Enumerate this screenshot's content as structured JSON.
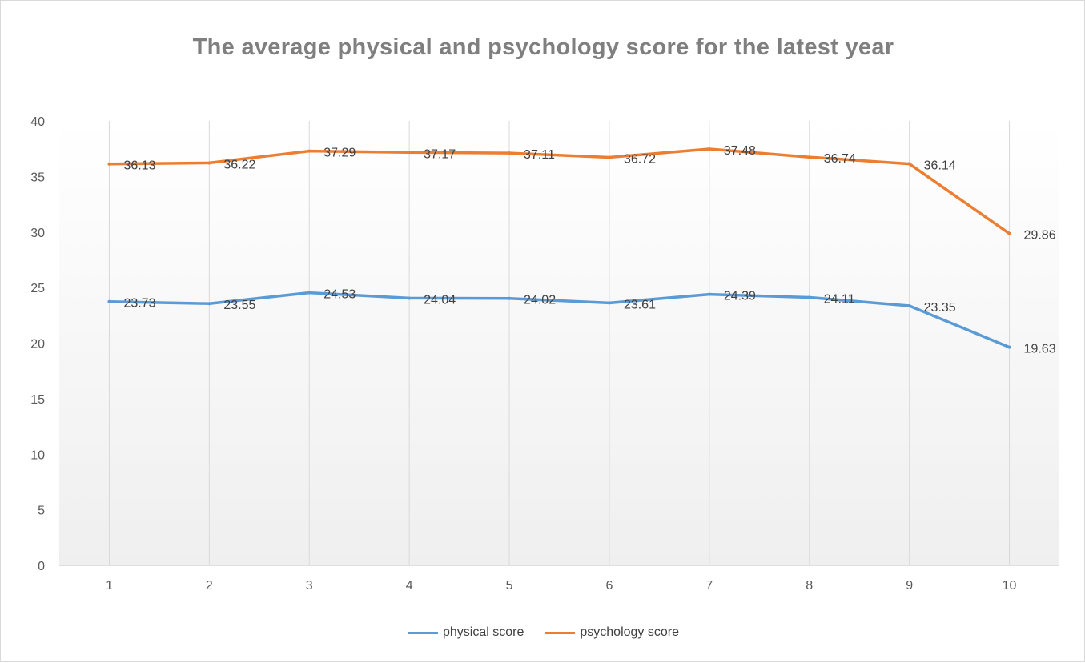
{
  "chart_data": {
    "type": "line",
    "title": "The average physical and psychology score for the latest year",
    "xlabel": "",
    "ylabel": "",
    "categories": [
      "1",
      "2",
      "3",
      "4",
      "5",
      "6",
      "7",
      "8",
      "9",
      "10"
    ],
    "ylim": [
      0,
      40
    ],
    "yticks": [
      0,
      5,
      10,
      15,
      20,
      25,
      30,
      35,
      40
    ],
    "grid": "vertical",
    "legend": "bottom",
    "data_labels": true,
    "series": [
      {
        "name": "physical score",
        "color": "#5b9bd5",
        "values": [
          23.73,
          23.55,
          24.53,
          24.04,
          24.02,
          23.61,
          24.39,
          24.11,
          23.35,
          19.63
        ],
        "labels": [
          "23.73",
          "23.55",
          "24.53",
          "24.04",
          "24.02",
          "23.61",
          "24.39",
          "24.11",
          "23.35",
          "19.63"
        ]
      },
      {
        "name": "psychology score",
        "color": "#ed7d31",
        "values": [
          36.13,
          36.22,
          37.29,
          37.17,
          37.11,
          36.72,
          37.48,
          36.74,
          36.14,
          29.86
        ],
        "labels": [
          "36.13",
          "36.22",
          "37.29",
          "37.17",
          "37.11",
          "36.72",
          "37.48",
          "36.74",
          "36.14",
          "29.86"
        ]
      }
    ]
  }
}
